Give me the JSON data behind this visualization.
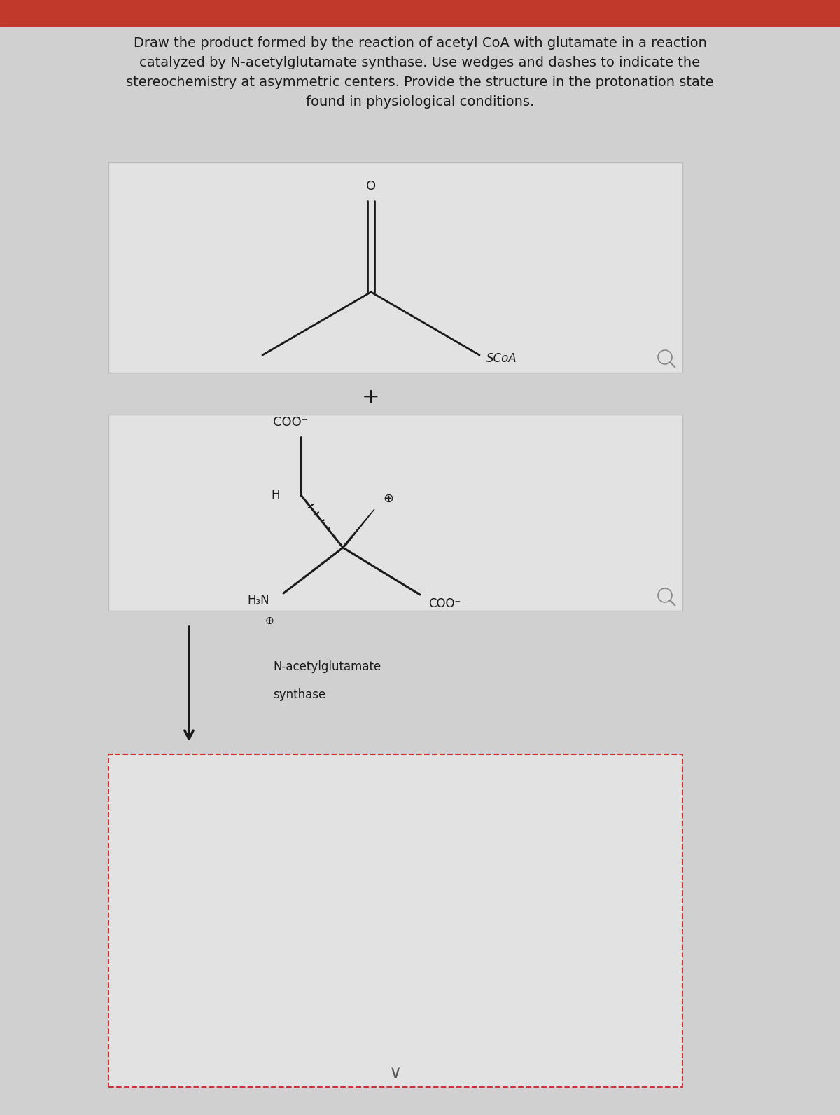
{
  "title_text": "Draw the product formed by the reaction of acetyl CoA with glutamate in a reaction\ncatalyzed by N-acetylglutamate synthase. Use wedges and dashes to indicate the\nstereochemistry at asymmetric centers. Provide the structure in the protonation state\nfound in physiological conditions.",
  "bg_color": "#d0d0d0",
  "box_bg_color": "#e2e2e2",
  "title_fontsize": 14,
  "lc": "#1a1a1a",
  "tc": "#1a1a1a",
  "red_bar_color": "#c0392b",
  "plus_fontsize": 20,
  "label_fontsize": 12,
  "enzyme_fontsize": 12,
  "coo_minus": "COO⁻",
  "h3n_label": "H₃N",
  "scoa_label": "SCoA",
  "o_label": "O",
  "h_label": "H",
  "plus_symbol": "⊕",
  "enzyme_line1": "N-acetylglutamate",
  "enzyme_line2": "synthase",
  "chevron": "∨"
}
